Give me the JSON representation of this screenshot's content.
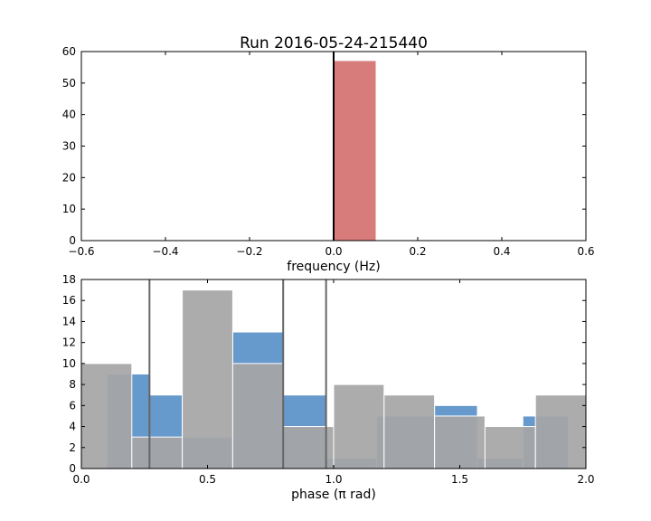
{
  "chart_data": [
    {
      "type": "bar",
      "title": "Run 2016-05-24-215440",
      "xlabel": "frequency (Hz)",
      "ylabel": "",
      "xlim": [
        -0.6,
        0.6
      ],
      "ylim": [
        0,
        60
      ],
      "xticks": [
        "−0.6",
        "−0.4",
        "−0.2",
        "0.0",
        "0.2",
        "0.4",
        "0.6"
      ],
      "yticks": [
        "0",
        "10",
        "20",
        "30",
        "40",
        "50",
        "60"
      ],
      "grid": false,
      "bars": [
        {
          "x0": 0.0,
          "x1": 0.1,
          "value": 57,
          "color": "#d77b7b"
        }
      ],
      "vlines": [
        {
          "x": 0.0,
          "color": "#000000"
        }
      ]
    },
    {
      "type": "bar",
      "title": "",
      "xlabel": "phase (π rad)",
      "ylabel": "",
      "xlim": [
        0.0,
        2.0
      ],
      "ylim": [
        0,
        18
      ],
      "xticks": [
        "0.0",
        "0.5",
        "1.0",
        "1.5",
        "2.0"
      ],
      "yticks": [
        "0",
        "2",
        "4",
        "6",
        "8",
        "10",
        "12",
        "14",
        "16",
        "18"
      ],
      "grid": false,
      "series": [
        {
          "color": "#6699cc",
          "bins": [
            {
              "x0": 0.1,
              "x1": 0.27,
              "value": 9
            },
            {
              "x0": 0.27,
              "x1": 0.4,
              "value": 7
            },
            {
              "x0": 0.4,
              "x1": 0.6,
              "value": 3
            },
            {
              "x0": 0.6,
              "x1": 0.8,
              "value": 13
            },
            {
              "x0": 0.8,
              "x1": 0.97,
              "value": 7
            },
            {
              "x0": 0.97,
              "x1": 1.17,
              "value": 1
            },
            {
              "x0": 1.17,
              "x1": 1.4,
              "value": 5
            },
            {
              "x0": 1.4,
              "x1": 1.57,
              "value": 6
            },
            {
              "x0": 1.57,
              "x1": 1.75,
              "value": 1
            },
            {
              "x0": 1.75,
              "x1": 1.93,
              "value": 5
            }
          ]
        },
        {
          "color": "#a6a6a6",
          "bins": [
            {
              "x0": 0.0,
              "x1": 0.2,
              "value": 10
            },
            {
              "x0": 0.2,
              "x1": 0.4,
              "value": 3
            },
            {
              "x0": 0.4,
              "x1": 0.6,
              "value": 17
            },
            {
              "x0": 0.6,
              "x1": 0.8,
              "value": 10
            },
            {
              "x0": 0.8,
              "x1": 1.0,
              "value": 4
            },
            {
              "x0": 1.0,
              "x1": 1.2,
              "value": 8
            },
            {
              "x0": 1.2,
              "x1": 1.4,
              "value": 7
            },
            {
              "x0": 1.4,
              "x1": 1.6,
              "value": 5
            },
            {
              "x0": 1.6,
              "x1": 1.8,
              "value": 4
            },
            {
              "x0": 1.8,
              "x1": 2.0,
              "value": 7
            }
          ]
        }
      ],
      "vlines": [
        {
          "x": 0.27,
          "color": "#666666"
        },
        {
          "x": 0.8,
          "color": "#666666"
        },
        {
          "x": 0.97,
          "color": "#666666"
        }
      ]
    }
  ]
}
